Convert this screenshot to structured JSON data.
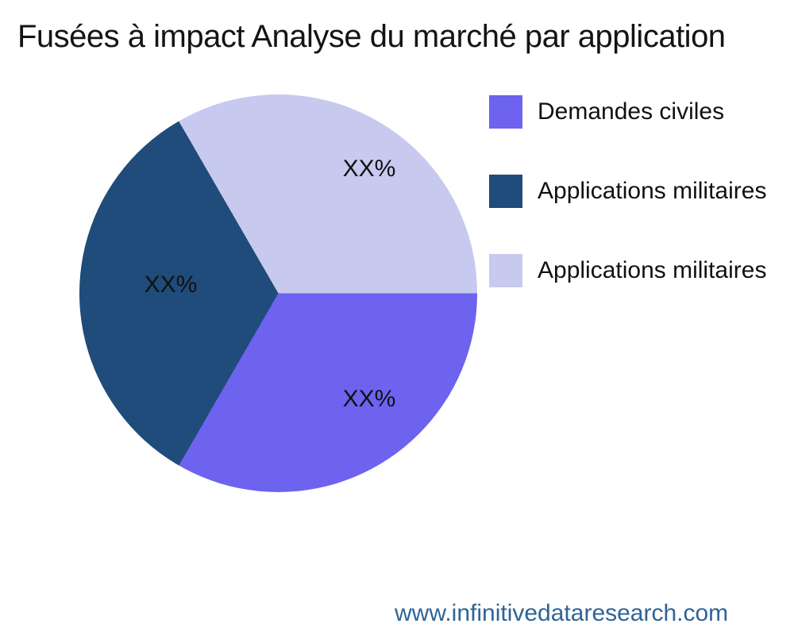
{
  "title": "Fusées à impact Analyse du marché par application",
  "footer": {
    "url": "www.infinitivedataresearch.com",
    "link_color": "#2E6496"
  },
  "chart_data": {
    "type": "pie",
    "title": "Fusées à impact Analyse du marché par application",
    "legend_position": "right",
    "direction": "clockwise",
    "start_angle_deg_from_east": 0,
    "slices": [
      {
        "label": "Demandes civiles",
        "value_label": "XX%",
        "value_pct": 33.33,
        "color": "#6D63EF"
      },
      {
        "label": "Applications militaires",
        "value_label": "XX%",
        "value_pct": 33.33,
        "color": "#1F4C7A"
      },
      {
        "label": "Applications militaires",
        "value_label": "XX%",
        "value_pct": 33.34,
        "color": "#C8C9EF"
      }
    ]
  }
}
